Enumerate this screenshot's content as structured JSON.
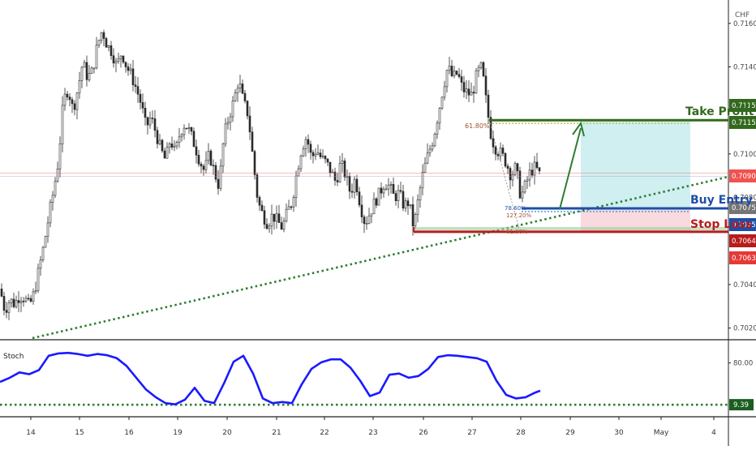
{
  "header": {
    "currency": "CHF"
  },
  "annotations": {
    "take_profit": "Take Profit",
    "buy_entry": "Buy Entry",
    "stop_loss": "Stop Loss",
    "fib_618": "61.80%",
    "fib_786": "78.60%",
    "fib_127": "127.20%",
    "fib_618b": "61.80%"
  },
  "colors": {
    "take_profit": "#33691e",
    "buy_entry": "#1e4fa8",
    "stop_loss": "#b71c1c",
    "candles": "#2b2b2b",
    "trendline": "#2e7d32",
    "stoch": "#1a1aff",
    "profit_zone": "#c8ecee",
    "loss_zone": "#f8d6db",
    "current_price": "#ef5350"
  },
  "chart_data": [
    {
      "type": "candlestick",
      "x_ticks": [
        "14",
        "15",
        "16",
        "19",
        "20",
        "21",
        "22",
        "23",
        "26",
        "27",
        "28",
        "29",
        "30",
        "May",
        "4"
      ],
      "y_ticks": [
        "0.71600",
        "0.71400",
        "0.71000",
        "0.70800",
        "0.70400",
        "0.70200"
      ],
      "ylim": [
        0.7015,
        0.7167
      ],
      "price_labels": [
        {
          "text": "0.71155",
          "value": 0.71155,
          "color": "#33691e"
        },
        {
          "text": "0.71154",
          "value": 0.71154,
          "color": "#33691e"
        },
        {
          "text": "0.70905",
          "value": 0.70905,
          "color": "#ef5350"
        },
        {
          "text": "0.70758",
          "value": 0.70758,
          "color": "#757575"
        },
        {
          "text": "0.70750",
          "value": 0.7075,
          "color": "#1e4fa8"
        },
        {
          "text": "0.70642",
          "value": 0.70642,
          "color": "#b71c1c"
        },
        {
          "text": "0.70639",
          "value": 0.70639,
          "color": "#e53935"
        }
      ],
      "levels": {
        "take_profit": 0.71155,
        "buy_entry": 0.7075,
        "stop_loss": 0.70642,
        "current": 0.70905
      },
      "close_path": [
        [
          0,
          0.7038
        ],
        [
          6,
          0.7028
        ],
        [
          12,
          0.7033
        ],
        [
          18,
          0.7031
        ],
        [
          24,
          0.7035
        ],
        [
          30,
          0.7034
        ],
        [
          36,
          0.703
        ],
        [
          42,
          0.7036
        ],
        [
          48,
          0.7047
        ],
        [
          54,
          0.7058
        ],
        [
          60,
          0.7071
        ],
        [
          66,
          0.7083
        ],
        [
          72,
          0.7097
        ],
        [
          78,
          0.7124
        ],
        [
          84,
          0.713
        ],
        [
          90,
          0.712
        ],
        [
          96,
          0.713
        ],
        [
          102,
          0.7142
        ],
        [
          108,
          0.7135
        ],
        [
          114,
          0.7138
        ],
        [
          120,
          0.715
        ],
        [
          126,
          0.7157
        ],
        [
          132,
          0.715
        ],
        [
          138,
          0.7147
        ],
        [
          144,
          0.714
        ],
        [
          150,
          0.7147
        ],
        [
          156,
          0.714
        ],
        [
          162,
          0.7136
        ],
        [
          168,
          0.713
        ],
        [
          174,
          0.7123
        ],
        [
          180,
          0.7112
        ],
        [
          186,
          0.7117
        ],
        [
          192,
          0.711
        ],
        [
          198,
          0.7102
        ],
        [
          204,
          0.7097
        ],
        [
          210,
          0.7107
        ],
        [
          216,
          0.71
        ],
        [
          222,
          0.711
        ],
        [
          228,
          0.7114
        ],
        [
          234,
          0.711
        ],
        [
          240,
          0.7104
        ],
        [
          246,
          0.7097
        ],
        [
          252,
          0.7092
        ],
        [
          258,
          0.71
        ],
        [
          264,
          0.7092
        ],
        [
          270,
          0.7085
        ],
        [
          276,
          0.7108
        ],
        [
          282,
          0.7117
        ],
        [
          288,
          0.7124
        ],
        [
          294,
          0.7134
        ],
        [
          300,
          0.7124
        ],
        [
          306,
          0.7118
        ],
        [
          312,
          0.7097
        ],
        [
          318,
          0.7078
        ],
        [
          324,
          0.7072
        ],
        [
          330,
          0.7068
        ],
        [
          336,
          0.7072
        ],
        [
          342,
          0.7069
        ],
        [
          348,
          0.7066
        ],
        [
          354,
          0.7073
        ],
        [
          360,
          0.7078
        ],
        [
          366,
          0.7092
        ],
        [
          372,
          0.7103
        ],
        [
          378,
          0.7108
        ],
        [
          384,
          0.7098
        ],
        [
          390,
          0.7102
        ],
        [
          396,
          0.7098
        ],
        [
          402,
          0.7096
        ],
        [
          408,
          0.7092
        ],
        [
          414,
          0.7087
        ],
        [
          420,
          0.7096
        ],
        [
          426,
          0.709
        ],
        [
          432,
          0.7082
        ],
        [
          438,
          0.7089
        ],
        [
          444,
          0.7077
        ],
        [
          450,
          0.7068
        ],
        [
          456,
          0.7073
        ],
        [
          462,
          0.7078
        ],
        [
          468,
          0.7082
        ],
        [
          474,
          0.7087
        ],
        [
          480,
          0.7085
        ],
        [
          486,
          0.708
        ],
        [
          492,
          0.7082
        ],
        [
          498,
          0.7076
        ],
        [
          504,
          0.7078
        ],
        [
          510,
          0.7066
        ],
        [
          516,
          0.708
        ],
        [
          522,
          0.7092
        ],
        [
          528,
          0.71
        ],
        [
          534,
          0.7107
        ],
        [
          540,
          0.7118
        ],
        [
          546,
          0.713
        ],
        [
          552,
          0.714
        ],
        [
          558,
          0.7135
        ],
        [
          564,
          0.7137
        ],
        [
          570,
          0.713
        ],
        [
          576,
          0.7128
        ],
        [
          582,
          0.7127
        ],
        [
          588,
          0.7137
        ],
        [
          594,
          0.714
        ],
        [
          600,
          0.7122
        ],
        [
          606,
          0.7107
        ],
        [
          612,
          0.7102
        ],
        [
          618,
          0.71
        ],
        [
          624,
          0.7096
        ],
        [
          630,
          0.709
        ],
        [
          636,
          0.7094
        ],
        [
          642,
          0.708
        ],
        [
          648,
          0.7086
        ],
        [
          654,
          0.7092
        ],
        [
          660,
          0.7094
        ],
        [
          666,
          0.709
        ]
      ]
    },
    {
      "type": "line",
      "title": "Stoch",
      "y_ticks": [
        "80.00",
        "9.39"
      ],
      "ylim": [
        0,
        100
      ],
      "oversold_level": 9.39,
      "series": [
        {
          "values": [
            [
              0,
              48
            ],
            [
              12,
              55
            ],
            [
              24,
              64
            ],
            [
              36,
              61
            ],
            [
              48,
              68
            ],
            [
              60,
              92
            ],
            [
              72,
              96
            ],
            [
              84,
              97
            ],
            [
              96,
              95
            ],
            [
              108,
              92
            ],
            [
              120,
              95
            ],
            [
              132,
              93
            ],
            [
              144,
              88
            ],
            [
              156,
              75
            ],
            [
              168,
              55
            ],
            [
              180,
              35
            ],
            [
              192,
              22
            ],
            [
              204,
              12
            ],
            [
              216,
              10
            ],
            [
              228,
              18
            ],
            [
              240,
              38
            ],
            [
              252,
              16
            ],
            [
              264,
              12
            ],
            [
              276,
              45
            ],
            [
              288,
              82
            ],
            [
              300,
              92
            ],
            [
              312,
              62
            ],
            [
              324,
              20
            ],
            [
              336,
              12
            ],
            [
              348,
              14
            ],
            [
              360,
              12
            ],
            [
              372,
              44
            ],
            [
              384,
              70
            ],
            [
              396,
              81
            ],
            [
              408,
              86
            ],
            [
              420,
              86
            ],
            [
              432,
              72
            ],
            [
              444,
              50
            ],
            [
              456,
              24
            ],
            [
              468,
              30
            ],
            [
              480,
              60
            ],
            [
              492,
              62
            ],
            [
              504,
              55
            ],
            [
              516,
              58
            ],
            [
              528,
              70
            ],
            [
              540,
              90
            ],
            [
              552,
              93
            ],
            [
              564,
              92
            ],
            [
              576,
              90
            ],
            [
              588,
              88
            ],
            [
              600,
              82
            ],
            [
              612,
              50
            ],
            [
              624,
              26
            ],
            [
              636,
              20
            ],
            [
              648,
              22
            ],
            [
              660,
              30
            ],
            [
              666,
              33
            ]
          ]
        }
      ]
    }
  ]
}
